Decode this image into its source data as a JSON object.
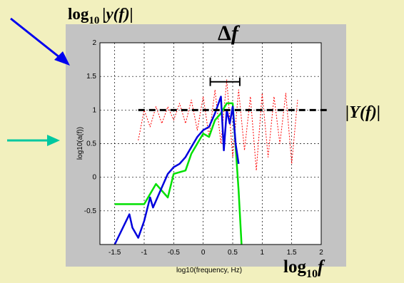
{
  "annotations": {
    "top_left_log": "log",
    "top_left_sub": "10",
    "top_left_var": "|y(f)|",
    "delta": "Δ",
    "delta_var": "f",
    "right_label": "|Y(f)|",
    "bottom_log": "log",
    "bottom_sub": "10",
    "bottom_var": "f"
  },
  "chart_data": {
    "type": "line",
    "xlabel": "log10(frequency, Hz)",
    "ylabel": "log10(a(f))",
    "xlim": [
      -1.75,
      2
    ],
    "ylim": [
      -1,
      2
    ],
    "x_ticks": [
      "-1.5",
      "-1",
      "-0.5",
      "0",
      "0.5",
      "1",
      "1.5",
      "2"
    ],
    "x_tick_values": [
      -1.5,
      -1,
      -0.5,
      0,
      0.5,
      1,
      1.5,
      2
    ],
    "y_ticks": [
      "-0.5",
      "0",
      "0.5",
      "1",
      "1.5",
      "2"
    ],
    "y_tick_values": [
      -0.5,
      0,
      0.5,
      1,
      1.5,
      2
    ],
    "grid": true,
    "series": [
      {
        "color": "#FF0000",
        "style": "dotted",
        "x": [
          -1.1,
          -1.0,
          -0.9,
          -0.8,
          -0.7,
          -0.6,
          -0.5,
          -0.4,
          -0.3,
          -0.2,
          -0.1,
          0.0,
          0.1,
          0.2,
          0.3,
          0.4,
          0.5,
          0.6,
          0.7,
          0.8,
          0.9,
          1.0,
          1.1,
          1.2,
          1.3,
          1.4,
          1.5,
          1.6
        ],
        "y": [
          0.55,
          1.0,
          0.75,
          1.05,
          0.8,
          1.05,
          0.85,
          1.1,
          0.8,
          1.15,
          0.7,
          1.2,
          0.6,
          1.3,
          0.5,
          1.45,
          0.3,
          1.3,
          0.4,
          1.2,
          0.1,
          1.25,
          0.3,
          1.2,
          0.5,
          1.25,
          0.2,
          1.15
        ]
      },
      {
        "color": "#00E000",
        "style": "solid",
        "x": [
          -1.5,
          -1.0,
          -0.8,
          -0.6,
          -0.5,
          -0.3,
          -0.2,
          -0.1,
          0.0,
          0.1,
          0.2,
          0.3,
          0.4,
          0.5,
          0.6,
          0.65
        ],
        "y": [
          -0.4,
          -0.4,
          -0.1,
          -0.3,
          0.05,
          0.1,
          0.35,
          0.5,
          0.65,
          0.6,
          0.85,
          0.95,
          1.1,
          1.1,
          -0.2,
          -1.0
        ]
      },
      {
        "color": "#0000DD",
        "style": "solid",
        "x": [
          -1.5,
          -1.25,
          -1.2,
          -1.1,
          -1.0,
          -0.9,
          -0.85,
          -0.7,
          -0.6,
          -0.5,
          -0.4,
          -0.3,
          -0.2,
          -0.1,
          0.0,
          0.1,
          0.2,
          0.3,
          0.35,
          0.4,
          0.45,
          0.5,
          0.55,
          0.6
        ],
        "y": [
          -1.0,
          -0.55,
          -0.75,
          -0.9,
          -0.65,
          -0.3,
          -0.45,
          -0.15,
          0.05,
          0.15,
          0.2,
          0.3,
          0.45,
          0.6,
          0.7,
          0.75,
          0.95,
          1.2,
          0.4,
          1.0,
          0.8,
          1.05,
          0.5,
          0.2
        ]
      }
    ],
    "reference_line": {
      "y": 1.0,
      "color": "#000000",
      "style": "dashed"
    },
    "bandwidth_bar": {
      "x_start": 0.12,
      "x_end": 0.62,
      "y": 1.42
    }
  }
}
